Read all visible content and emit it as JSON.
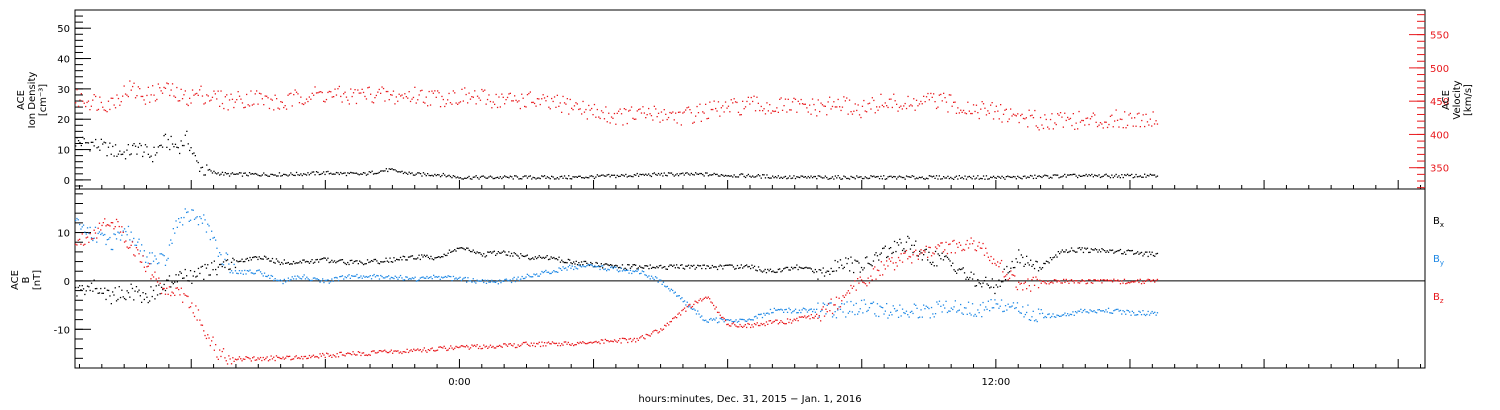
{
  "x_axis": {
    "caption": "hours:minutes, Dec. 31, 2015 − Jan. 1, 2016",
    "range_hours": [
      -8.6,
      21.6
    ],
    "tick_labels": [
      {
        "hour": 0,
        "label": "0:00"
      },
      {
        "hour": 12,
        "label": "12:00"
      }
    ]
  },
  "chart_data": [
    {
      "type": "scatter",
      "name": "top-panel",
      "ylabel_left": [
        "ACE",
        "Ion Density",
        "[cm⁻³]"
      ],
      "ylabel_right": [
        "ACE",
        "Velocity",
        "[km/s]"
      ],
      "ylim_left": [
        -3,
        56
      ],
      "ylim_right": [
        318,
        587
      ],
      "yticks_left": [
        0,
        10,
        20,
        30,
        40,
        50
      ],
      "yticks_right": [
        350,
        400,
        450,
        500,
        550
      ],
      "series": [
        {
          "color": "#000000",
          "axis": "left",
          "x": [
            -8.6,
            -8.2,
            -7.8,
            -7.5,
            -7.2,
            -6.9,
            -6.6,
            -6.3,
            -6.1,
            -5.9,
            -5.7,
            -5.2,
            -4.5,
            -3.8,
            -3.0,
            -2.2,
            -1.6,
            -1.0,
            -0.5,
            0.0,
            0.5,
            1.5,
            2.5,
            3.5,
            4.5,
            5.5,
            6.5,
            7.5,
            8.5,
            9.5,
            10.5,
            11.5,
            12.5,
            13.5,
            14.5,
            15.6
          ],
          "y": [
            13,
            12,
            10,
            9,
            11,
            8,
            13,
            11,
            14,
            6,
            3,
            2,
            2,
            2,
            2.5,
            2,
            3.5,
            2,
            2,
            1,
            1,
            1,
            1,
            1.5,
            2,
            2,
            1.5,
            1,
            1,
            1,
            1,
            1,
            1,
            1.5,
            1.5,
            1.5
          ]
        },
        {
          "color": "#e8181c",
          "axis": "right",
          "x": [
            -8.6,
            -8.2,
            -7.8,
            -7.4,
            -7.0,
            -6.6,
            -6.2,
            -5.8,
            -5.2,
            -4.6,
            -4.0,
            -3.5,
            -3.0,
            -2.5,
            -2.0,
            -1.5,
            -1.0,
            -0.5,
            0.0,
            0.5,
            1.0,
            1.5,
            2.0,
            2.5,
            3.0,
            3.5,
            4.0,
            4.5,
            5.0,
            5.5,
            6.0,
            6.5,
            7.0,
            7.5,
            8.0,
            8.5,
            9.0,
            9.5,
            10.0,
            10.5,
            11.0,
            11.5,
            12.0,
            12.5,
            13.0,
            13.5,
            14.0,
            14.5,
            15.0,
            15.6
          ],
          "y": [
            455,
            451,
            448,
            470,
            458,
            470,
            455,
            462,
            451,
            457,
            445,
            460,
            461,
            458,
            462,
            457,
            460,
            456,
            458,
            455,
            452,
            453,
            446,
            445,
            434,
            428,
            430,
            432,
            428,
            436,
            440,
            445,
            442,
            443,
            440,
            446,
            438,
            450,
            444,
            452,
            447,
            440,
            434,
            428,
            421,
            425,
            420,
            423,
            425,
            425
          ]
        }
      ]
    },
    {
      "type": "scatter",
      "name": "bottom-panel",
      "ylabel_left": [
        "ACE",
        "B",
        "[nT]"
      ],
      "ylim_left": [
        -18,
        19
      ],
      "yticks_left": [
        -10,
        0,
        10
      ],
      "zero_line": true,
      "series": [
        {
          "name": "Bx",
          "label": "B",
          "subscript": "x",
          "color": "#000000",
          "x": [
            -8.6,
            -8.2,
            -7.8,
            -7.4,
            -7.0,
            -6.6,
            -6.3,
            -6.0,
            -5.7,
            -5.4,
            -5.0,
            -4.5,
            -4.0,
            -3.5,
            -3.0,
            -2.5,
            -2.0,
            -1.5,
            -1.0,
            -0.5,
            0.0,
            0.5,
            1.0,
            1.5,
            2.0,
            2.5,
            3.0,
            3.5,
            4.0,
            4.5,
            5.0,
            5.5,
            6.0,
            6.5,
            7.0,
            7.5,
            8.0,
            8.5,
            9.0,
            9.5,
            10.0,
            10.5,
            11.0,
            11.5,
            12.0,
            12.5,
            13.0,
            13.5,
            14.0,
            14.5,
            15.0,
            15.6
          ],
          "y": [
            -2,
            -1,
            -3,
            -2,
            -3,
            -1,
            1,
            1,
            2,
            3,
            4,
            5,
            4,
            4,
            4.5,
            4,
            4,
            4.5,
            5,
            5,
            7,
            5.5,
            6,
            5,
            5,
            4,
            3.5,
            3,
            3,
            3,
            3,
            3,
            3,
            3,
            2,
            3,
            2,
            4,
            3,
            6,
            8,
            5,
            4,
            0,
            -1,
            5,
            3,
            6.5,
            6.5,
            6.5,
            6,
            5.5
          ]
        },
        {
          "name": "By",
          "label": "B",
          "subscript": "y",
          "color": "#1e88e5",
          "x": [
            -8.6,
            -8.2,
            -7.8,
            -7.4,
            -7.0,
            -6.6,
            -6.3,
            -6.0,
            -5.7,
            -5.4,
            -5.0,
            -4.5,
            -4.0,
            -3.5,
            -3.0,
            -2.5,
            -2.0,
            -1.5,
            -1.0,
            -0.5,
            0.0,
            0.5,
            1.0,
            1.5,
            2.0,
            2.5,
            3.0,
            3.5,
            4.0,
            4.5,
            5.0,
            5.5,
            6.0,
            6.5,
            7.0,
            7.5,
            8.0,
            8.5,
            9.0,
            9.5,
            10.0,
            10.5,
            11.0,
            11.5,
            12.0,
            12.5,
            13.0,
            13.5,
            14.0,
            14.5,
            15.0,
            15.6
          ],
          "y": [
            12,
            10,
            8,
            10,
            5,
            4,
            13,
            14,
            12,
            6,
            2,
            2,
            0,
            1,
            0,
            1,
            1,
            1,
            0.5,
            1,
            0.5,
            0,
            0,
            1,
            2,
            3,
            3,
            2.5,
            2,
            0,
            -4,
            -8,
            -8,
            -8,
            -6,
            -6,
            -6,
            -6,
            -5,
            -6,
            -6,
            -6,
            -5,
            -6,
            -5,
            -6,
            -7,
            -7,
            -6,
            -6,
            -6.5,
            -6.5
          ]
        },
        {
          "name": "Bz",
          "label": "B",
          "subscript": "z",
          "color": "#e8181c",
          "x": [
            -8.6,
            -8.2,
            -7.8,
            -7.4,
            -7.0,
            -6.6,
            -6.3,
            -6.0,
            -5.7,
            -5.4,
            -5.0,
            -4.5,
            -4.0,
            -3.5,
            -3.0,
            -2.5,
            -2.0,
            -1.5,
            -1.0,
            -0.5,
            0.0,
            0.5,
            1.0,
            1.5,
            2.0,
            2.5,
            3.0,
            3.5,
            4.0,
            4.5,
            5.0,
            5.5,
            6.0,
            6.5,
            7.0,
            7.5,
            8.0,
            8.5,
            9.0,
            9.5,
            10.0,
            10.5,
            11.0,
            11.5,
            12.0,
            12.5,
            13.0,
            13.5,
            14.0,
            14.5,
            15.0,
            15.6
          ],
          "y": [
            8,
            10,
            13,
            8,
            3,
            -2,
            -2,
            -5,
            -10,
            -15,
            -16,
            -16,
            -15.8,
            -15.5,
            -15.3,
            -15,
            -14.8,
            -14.5,
            -14.3,
            -14,
            -13.5,
            -13.5,
            -13.3,
            -13,
            -13,
            -12.8,
            -12.6,
            -12.3,
            -12,
            -10,
            -6,
            -3,
            -9,
            -9,
            -8.5,
            -8,
            -7,
            -4,
            0,
            3,
            5,
            6,
            7,
            8,
            4,
            -1,
            0,
            0,
            0,
            0,
            0,
            0
          ]
        }
      ]
    }
  ]
}
